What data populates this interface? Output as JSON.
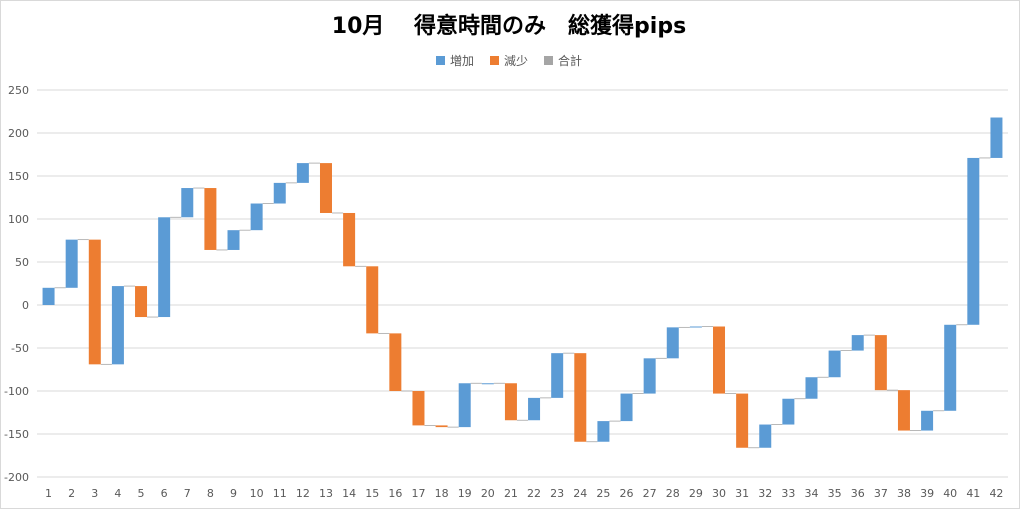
{
  "chart_data": {
    "type": "bar",
    "subtype": "waterfall",
    "title": "10月　 得意時間のみ　総獲得pips",
    "xlabel": "",
    "ylabel": "",
    "ylim": [
      -200,
      250
    ],
    "yticks": [
      250,
      200,
      150,
      100,
      50,
      0,
      -50,
      -100,
      -150,
      -200
    ],
    "grid": true,
    "legend_position": "top",
    "legend": [
      {
        "name": "増加",
        "color": "#5b9bd5"
      },
      {
        "name": "減少",
        "color": "#ed7d31"
      },
      {
        "name": "合計",
        "color": "#a5a5a5"
      }
    ],
    "categories": [
      "1",
      "2",
      "3",
      "4",
      "5",
      "6",
      "7",
      "8",
      "9",
      "10",
      "11",
      "12",
      "13",
      "14",
      "15",
      "16",
      "17",
      "18",
      "19",
      "20",
      "21",
      "22",
      "23",
      "24",
      "25",
      "26",
      "27",
      "28",
      "29",
      "30",
      "31",
      "32",
      "33",
      "34",
      "35",
      "36",
      "37",
      "38",
      "39",
      "40",
      "41",
      "42"
    ],
    "values": [
      20,
      56,
      -145,
      91,
      -36,
      116,
      34,
      -72,
      23,
      31,
      24,
      23,
      -58,
      -62,
      -78,
      -67,
      -40,
      -2,
      51,
      0,
      -43,
      26,
      52,
      -103,
      24,
      32,
      41,
      36,
      1,
      -78,
      -63,
      27,
      30,
      25,
      31,
      18,
      -64,
      -47,
      23,
      100,
      194,
      47
    ]
  }
}
